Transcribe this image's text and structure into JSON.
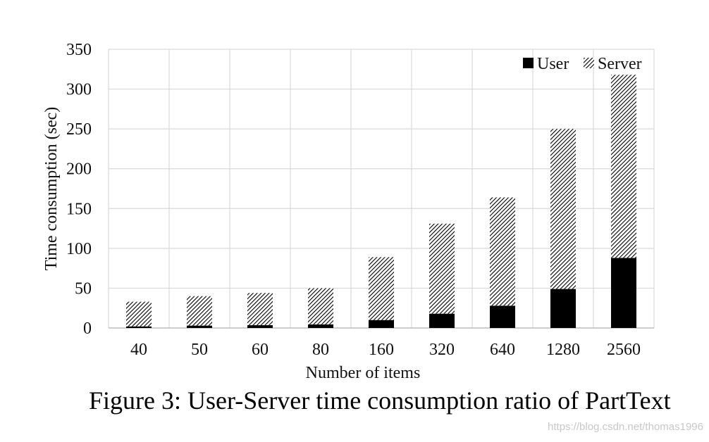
{
  "chart_data": {
    "type": "bar",
    "stacked": true,
    "categories": [
      "40",
      "50",
      "60",
      "80",
      "160",
      "320",
      "640",
      "1280",
      "2560"
    ],
    "series": [
      {
        "name": "User",
        "values": [
          2,
          3,
          3.5,
          4.5,
          10,
          18,
          28,
          49,
          88
        ],
        "color": "#000000",
        "pattern": "solid"
      },
      {
        "name": "Server",
        "values": [
          31,
          37,
          40.5,
          45.5,
          79,
          113,
          136,
          201,
          230
        ],
        "color": "#000000",
        "pattern": "diagonal-hatch"
      }
    ],
    "xlabel": "Number of items",
    "ylabel": "Time consumption (sec)",
    "ylim": [
      0,
      350
    ],
    "yticks": [
      0,
      50,
      100,
      150,
      200,
      250,
      300,
      350
    ],
    "grid": true,
    "legend_position": "top-right"
  },
  "caption": "Figure 3: User-Server time consumption ratio of PartText",
  "watermark": "https://blog.csdn.net/thomas1996"
}
